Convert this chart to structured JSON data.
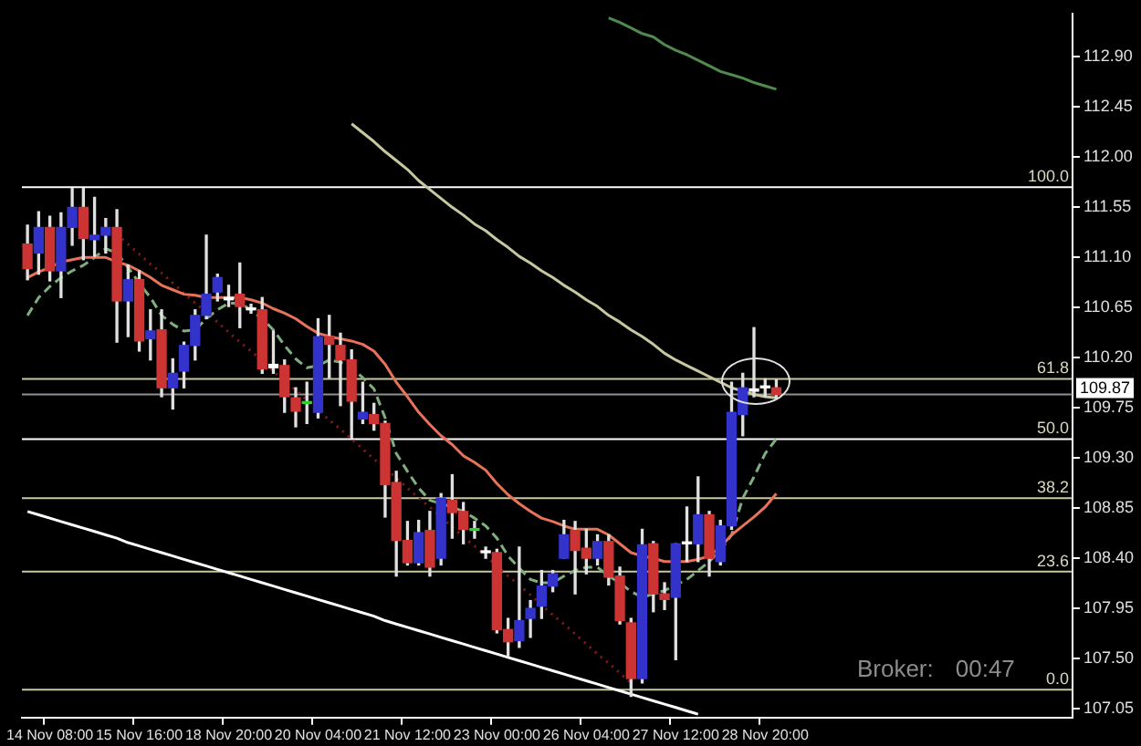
{
  "chart_data": {
    "type": "candlestick",
    "categories": [
      null,
      null,
      "14 Nov 08:00",
      null,
      null,
      null,
      null,
      null,
      null,
      null,
      "15 Nov 16:00",
      null,
      null,
      null,
      null,
      null,
      null,
      null,
      "18 Nov 20:00",
      null,
      null,
      null,
      null,
      null,
      null,
      null,
      "20 Nov 04:00",
      null,
      null,
      null,
      null,
      null,
      null,
      null,
      "21 Nov 12:00",
      null,
      null,
      null,
      null,
      null,
      null,
      null,
      "23 Nov 00:00",
      null,
      null,
      null,
      null,
      null,
      null,
      null,
      "26 Nov 04:00",
      null,
      null,
      null,
      null,
      null,
      null,
      null,
      "27 Nov 12:00",
      null,
      null,
      null,
      null,
      null,
      null,
      null,
      "28 Nov 20:00",
      null,
      null,
      null,
      null,
      null,
      null,
      null,
      null,
      null,
      null,
      null,
      null,
      null,
      null,
      null,
      null,
      null,
      null,
      null,
      null,
      null,
      null,
      null,
      null,
      null,
      null,
      null
    ],
    "ohlc": [
      [
        111.22,
        111.39,
        110.9,
        111.0
      ],
      [
        111.14,
        111.51,
        110.95,
        111.37
      ],
      [
        111.37,
        111.47,
        110.89,
        110.98
      ],
      [
        110.98,
        111.5,
        110.74,
        111.37
      ],
      [
        111.37,
        111.72,
        111.21,
        111.55
      ],
      [
        111.55,
        111.72,
        111.08,
        111.27
      ],
      [
        111.26,
        111.64,
        111.11,
        111.3
      ],
      [
        111.3,
        111.45,
        111.14,
        111.37
      ],
      [
        111.37,
        111.53,
        110.34,
        110.71
      ],
      [
        110.71,
        111.03,
        110.39,
        110.9
      ],
      [
        110.9,
        110.98,
        110.26,
        110.35
      ],
      [
        110.37,
        110.63,
        110.18,
        110.44
      ],
      [
        110.45,
        110.63,
        109.85,
        109.93
      ],
      [
        109.93,
        110.19,
        109.74,
        110.06
      ],
      [
        110.08,
        110.34,
        109.93,
        110.31
      ],
      [
        110.31,
        110.63,
        110.18,
        110.58
      ],
      [
        110.58,
        111.3,
        110.55,
        110.77
      ],
      [
        110.79,
        110.95,
        110.71,
        110.92
      ],
      [
        110.72,
        110.85,
        110.66,
        110.74
      ],
      [
        110.77,
        111.05,
        110.47,
        110.66
      ],
      [
        110.64,
        110.68,
        110.6,
        110.63
      ],
      [
        110.63,
        110.74,
        110.06,
        110.1
      ],
      [
        110.11,
        110.44,
        110.06,
        110.14
      ],
      [
        110.13,
        110.18,
        109.71,
        109.85
      ],
      [
        109.84,
        109.93,
        109.58,
        109.72
      ],
      [
        109.79,
        109.98,
        109.61,
        109.79
      ],
      [
        109.71,
        110.55,
        109.66,
        110.39
      ],
      [
        110.39,
        110.58,
        110.02,
        110.32
      ],
      [
        110.31,
        110.42,
        109.77,
        110.18
      ],
      [
        110.18,
        110.27,
        109.48,
        109.81
      ],
      [
        109.65,
        109.98,
        109.61,
        109.71
      ],
      [
        109.69,
        109.79,
        109.55,
        109.61
      ],
      [
        109.61,
        109.63,
        108.77,
        109.06
      ],
      [
        109.08,
        109.18,
        108.24,
        108.56
      ],
      [
        108.56,
        108.73,
        108.34,
        108.36
      ],
      [
        108.36,
        108.74,
        108.34,
        108.63
      ],
      [
        108.65,
        108.82,
        108.24,
        108.32
      ],
      [
        108.4,
        108.98,
        108.34,
        108.94
      ],
      [
        108.92,
        109.15,
        108.58,
        108.81
      ],
      [
        108.82,
        108.9,
        108.53,
        108.66
      ],
      [
        108.65,
        108.73,
        108.58,
        108.65
      ],
      [
        108.45,
        108.5,
        108.4,
        108.45
      ],
      [
        108.45,
        108.48,
        107.73,
        107.76
      ],
      [
        107.76,
        107.86,
        107.52,
        107.65
      ],
      [
        107.66,
        108.5,
        107.6,
        107.84
      ],
      [
        107.86,
        108.02,
        107.69,
        107.95
      ],
      [
        107.97,
        108.29,
        107.86,
        108.15
      ],
      [
        108.15,
        108.29,
        108.1,
        108.26
      ],
      [
        108.4,
        108.74,
        108.4,
        108.61
      ],
      [
        108.65,
        108.73,
        108.08,
        108.47
      ],
      [
        108.49,
        108.66,
        108.26,
        108.4
      ],
      [
        108.4,
        108.61,
        108.34,
        108.55
      ],
      [
        108.55,
        108.61,
        108.16,
        108.23
      ],
      [
        108.24,
        108.32,
        107.81,
        107.84
      ],
      [
        107.82,
        107.86,
        107.16,
        107.32
      ],
      [
        107.32,
        108.66,
        107.28,
        108.52
      ],
      [
        108.53,
        108.55,
        107.92,
        108.08
      ],
      [
        108.08,
        108.18,
        107.94,
        108.03
      ],
      [
        108.05,
        108.53,
        107.49,
        108.53
      ],
      [
        108.53,
        108.86,
        108.37,
        108.53
      ],
      [
        108.53,
        109.13,
        108.37,
        108.79
      ],
      [
        108.79,
        108.82,
        108.24,
        108.4
      ],
      [
        108.37,
        108.74,
        108.34,
        108.69
      ],
      [
        108.69,
        109.98,
        108.66,
        109.71
      ],
      [
        109.69,
        110.06,
        109.5,
        109.93
      ],
      [
        109.9,
        110.47,
        109.85,
        109.92
      ],
      [
        109.93,
        110.01,
        109.85,
        109.93
      ],
      [
        109.93,
        110.0,
        109.84,
        109.87
      ],
      null,
      null,
      null,
      null,
      null,
      null,
      null,
      null,
      null,
      null,
      null,
      null,
      null,
      null,
      null,
      null,
      null,
      null,
      null,
      null,
      null,
      null,
      null,
      null,
      null,
      null
    ],
    "colors": [
      "#cc3333",
      "#3333cc",
      "#cc3333",
      "#3333cc",
      "#3333cc",
      "#cc3333",
      "#3333cc",
      "#3333cc",
      "#cc3333",
      "#3333cc",
      "#cc3333",
      "#3333cc",
      "#cc3333",
      "#3333cc",
      "#3333cc",
      "#3333cc",
      "#3333cc",
      "#3333cc",
      "#ffffff",
      "#cc3333",
      "#ffffff",
      "#cc3333",
      "#ffffff",
      "#cc3333",
      "#cc3333",
      "#33cc33",
      "#3333cc",
      "#cc3333",
      "#cc3333",
      "#cc3333",
      "#3333cc",
      "#cc3333",
      "#cc3333",
      "#cc3333",
      "#cc3333",
      "#3333cc",
      "#cc3333",
      "#3333cc",
      "#cc3333",
      "#cc3333",
      "#33cc33",
      "#ffffff",
      "#cc3333",
      "#cc3333",
      "#3333cc",
      "#3333cc",
      "#3333cc",
      "#3333cc",
      "#3333cc",
      "#cc3333",
      "#cc3333",
      "#3333cc",
      "#cc3333",
      "#cc3333",
      "#cc3333",
      "#3333cc",
      "#cc3333",
      "#cc3333",
      "#3333cc",
      "#ffffff",
      "#3333cc",
      "#cc3333",
      "#3333cc",
      "#3333cc",
      "#3333cc",
      "#ffffff",
      "#ffffff",
      "#cc3333",
      null,
      null,
      null,
      null,
      null,
      null,
      null,
      null,
      null,
      null,
      null,
      null,
      null,
      null,
      null,
      null,
      null,
      null,
      null,
      null,
      null,
      null,
      null,
      null,
      null,
      null
    ],
    "series": [
      {
        "type": "line",
        "color": "#e8735a",
        "values": [
          110.92,
          110.97,
          111.01,
          111.06,
          111.08,
          111.1,
          111.1,
          111.1,
          111.06,
          111.03,
          110.98,
          110.92,
          110.85,
          110.81,
          110.77,
          110.76,
          110.74,
          110.74,
          110.74,
          110.74,
          110.72,
          110.69,
          110.64,
          110.6,
          110.55,
          110.48,
          110.42,
          110.39,
          110.37,
          110.35,
          110.32,
          110.26,
          110.14,
          109.98,
          109.85,
          109.71,
          109.6,
          109.5,
          109.42,
          109.32,
          109.26,
          109.19,
          109.07,
          108.97,
          108.89,
          108.82,
          108.76,
          108.73,
          108.69,
          108.66,
          108.66,
          108.66,
          108.61,
          108.53,
          108.45,
          108.42,
          108.4,
          108.37,
          108.37,
          108.37,
          108.39,
          108.42,
          108.5,
          108.61,
          108.69,
          108.77,
          108.86,
          108.98,
          null,
          null,
          null,
          null,
          null,
          null,
          null,
          null,
          null,
          null,
          null,
          null,
          null,
          null,
          null,
          null,
          null,
          null,
          null,
          null,
          null,
          null,
          null,
          null,
          null,
          null
        ]
      },
      {
        "type": "line",
        "color": "#7fae7f",
        "line_style": "dashed",
        "values": [
          110.58,
          110.74,
          110.84,
          110.92,
          110.98,
          111.03,
          111.1,
          111.18,
          111.14,
          111.01,
          110.87,
          110.74,
          110.58,
          110.5,
          110.44,
          110.45,
          110.55,
          110.63,
          110.69,
          110.69,
          110.63,
          110.55,
          110.45,
          110.31,
          110.19,
          110.11,
          110.13,
          110.18,
          110.16,
          110.11,
          110.02,
          109.92,
          109.66,
          109.34,
          109.18,
          109.03,
          108.92,
          108.89,
          108.86,
          108.82,
          108.76,
          108.69,
          108.58,
          108.42,
          108.31,
          108.21,
          108.18,
          108.18,
          108.24,
          108.29,
          108.32,
          108.32,
          108.24,
          108.18,
          108.1,
          108.05,
          108.08,
          108.11,
          108.16,
          108.21,
          108.29,
          108.37,
          108.47,
          108.61,
          108.94,
          109.13,
          109.34,
          109.47,
          null,
          null,
          null,
          null,
          null,
          null,
          null,
          null,
          null,
          null,
          null,
          null,
          null,
          null,
          null,
          null,
          null,
          null,
          null,
          null,
          null,
          null,
          null,
          null,
          null,
          null
        ]
      },
      {
        "type": "line",
        "color": "#c8c8a0",
        "values": [
          null,
          null,
          null,
          null,
          null,
          null,
          null,
          null,
          null,
          null,
          null,
          null,
          null,
          null,
          null,
          null,
          null,
          null,
          null,
          null,
          null,
          null,
          null,
          null,
          null,
          null,
          null,
          null,
          null,
          112.3,
          112.22,
          112.14,
          112.05,
          111.97,
          111.89,
          111.79,
          111.71,
          111.63,
          111.55,
          111.48,
          111.4,
          111.34,
          111.26,
          111.19,
          111.11,
          111.05,
          110.98,
          110.92,
          110.85,
          110.79,
          110.72,
          110.66,
          110.58,
          110.52,
          110.45,
          110.39,
          110.32,
          110.24,
          110.18,
          110.13,
          110.08,
          110.03,
          109.98,
          109.93,
          109.9,
          109.87,
          109.85,
          109.84,
          null,
          null,
          null,
          null,
          null,
          null,
          null,
          null,
          null,
          null,
          null,
          null,
          null,
          null,
          null,
          null,
          null,
          null,
          null,
          null,
          null,
          null,
          null,
          null,
          null,
          null
        ]
      },
      {
        "type": "line",
        "color": "#4f8a4f",
        "values": [
          null,
          null,
          null,
          null,
          null,
          null,
          null,
          null,
          null,
          null,
          null,
          null,
          null,
          null,
          null,
          null,
          null,
          null,
          null,
          null,
          null,
          null,
          null,
          null,
          null,
          null,
          null,
          null,
          null,
          null,
          null,
          null,
          null,
          null,
          null,
          null,
          null,
          null,
          null,
          null,
          null,
          null,
          null,
          null,
          null,
          null,
          null,
          null,
          null,
          null,
          null,
          null,
          113.25,
          113.21,
          113.16,
          113.11,
          113.08,
          113.01,
          112.96,
          112.92,
          112.87,
          112.82,
          112.77,
          112.74,
          112.71,
          112.67,
          112.64,
          112.61,
          null,
          null,
          null,
          null,
          null,
          null,
          null,
          null,
          null,
          null,
          null,
          null,
          null,
          null,
          null,
          null,
          null,
          null,
          null,
          null,
          null,
          null,
          null,
          null,
          null,
          null
        ]
      },
      {
        "type": "line",
        "color": "#ffffff",
        "values": [
          108.82,
          108.79,
          108.76,
          108.73,
          108.7,
          108.67,
          108.64,
          108.61,
          108.58,
          108.54,
          108.51,
          108.48,
          108.45,
          108.42,
          108.39,
          108.36,
          108.33,
          108.3,
          108.27,
          108.24,
          108.21,
          108.18,
          108.15,
          108.12,
          108.09,
          108.06,
          108.03,
          108.0,
          107.97,
          107.94,
          107.91,
          107.88,
          107.84,
          107.81,
          107.78,
          107.75,
          107.72,
          107.69,
          107.66,
          107.63,
          107.6,
          107.57,
          107.54,
          107.51,
          107.48,
          107.45,
          107.42,
          107.39,
          107.36,
          107.33,
          107.3,
          107.27,
          107.24,
          107.21,
          107.18,
          107.15,
          107.12,
          107.09,
          107.06,
          107.03,
          107.0,
          null,
          null,
          null,
          null,
          null,
          null,
          null,
          null,
          null,
          null,
          null,
          null,
          null,
          null,
          null,
          null,
          null,
          null,
          null,
          null,
          null,
          null,
          null,
          null,
          null,
          null,
          null,
          null,
          null,
          null,
          null,
          null,
          null
        ]
      },
      {
        "type": "line",
        "color": "#8b1a1a",
        "line_style": "dotted",
        "values": [
          null,
          null,
          null,
          null,
          null,
          null,
          null,
          null,
          111.31,
          111.22,
          111.13,
          111.04,
          110.96,
          110.87,
          110.78,
          110.69,
          110.61,
          110.52,
          110.43,
          110.34,
          110.26,
          110.17,
          110.08,
          109.99,
          109.91,
          109.82,
          109.73,
          109.64,
          109.56,
          109.47,
          109.38,
          109.29,
          109.21,
          109.12,
          109.03,
          108.94,
          108.86,
          108.77,
          108.68,
          108.59,
          108.51,
          108.42,
          108.33,
          108.24,
          108.16,
          108.07,
          107.98,
          107.89,
          107.81,
          107.72,
          107.63,
          107.54,
          107.46,
          107.37,
          107.28,
          null,
          null,
          null,
          null,
          null,
          null,
          null,
          null,
          null,
          null,
          null,
          null,
          null,
          null,
          null,
          null,
          null,
          null,
          null,
          null,
          null,
          null,
          null,
          null,
          null,
          null,
          null,
          null,
          null,
          null,
          null,
          null,
          null,
          null,
          null,
          null,
          null,
          null,
          null
        ]
      }
    ],
    "ref_lines": [
      {
        "axis": "y",
        "value": 111.73,
        "color": "#ffffff"
      },
      {
        "axis": "y",
        "value": 110.01,
        "color": "#c8c8a0"
      },
      {
        "axis": "y",
        "value": 109.87,
        "color": "#909090",
        "label": "109.87"
      },
      {
        "axis": "y",
        "value": 109.47,
        "color": "#ffffff"
      },
      {
        "axis": "y",
        "value": 108.94,
        "color": "#c8c8a0"
      },
      {
        "axis": "y",
        "value": 108.28,
        "color": "#c8c8a0"
      },
      {
        "axis": "y",
        "value": 107.22,
        "color": "#c8c8a0"
      }
    ],
    "annotations": [
      {
        "text": "100.0",
        "y": 111.73
      },
      {
        "text": "61.8",
        "y": 110.01
      },
      {
        "text": "50.0",
        "y": 109.47
      },
      {
        "text": "38.2",
        "y": 108.94
      },
      {
        "text": "23.6",
        "y": 108.28
      },
      {
        "text": "0.0",
        "y": 107.22
      },
      "Broker:",
      "00:47"
    ],
    "ylim": [
      106.97,
      113.29
    ],
    "yticks": [
      107.05,
      {
        "value": 107.5,
        "label": "107.50"
      },
      107.95,
      {
        "value": 108.4,
        "label": "108.40"
      },
      108.85,
      {
        "value": 109.3,
        "label": "109.30"
      },
      109.75,
      {
        "value": 110.2,
        "label": "110.20"
      },
      110.65,
      {
        "value": 111.1,
        "label": "111.10"
      },
      111.55,
      {
        "value": 112,
        "label": "112.00"
      },
      112.45,
      {
        "value": 112.9,
        "label": "112.90"
      }
    ]
  }
}
